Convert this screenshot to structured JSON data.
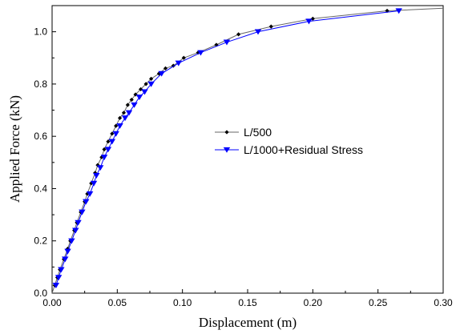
{
  "chart_data": {
    "type": "line",
    "xlabel": "Displacement (m)",
    "ylabel": "Applied Force (kN)",
    "xlim": [
      0.0,
      0.3
    ],
    "ylim": [
      0.0,
      1.1
    ],
    "xticks": [
      0.0,
      0.05,
      0.1,
      0.15,
      0.2,
      0.25,
      0.3
    ],
    "xtick_labels": [
      "0.00",
      "0.05",
      "0.10",
      "0.15",
      "0.20",
      "0.25",
      "0.30"
    ],
    "yticks": [
      0.0,
      0.2,
      0.4,
      0.6,
      0.8,
      1.0
    ],
    "ytick_labels": [
      "0.0",
      "0.2",
      "0.4",
      "0.6",
      "0.8",
      "1.0"
    ],
    "grid": false,
    "legend": {
      "placement": "center-right"
    },
    "series": [
      {
        "name": "L/500",
        "color": "#666666",
        "marker": "diamond",
        "marker_color": "#000000",
        "x": [
          0.0,
          0.002,
          0.004,
          0.006,
          0.009,
          0.012,
          0.014,
          0.017,
          0.019,
          0.022,
          0.025,
          0.027,
          0.03,
          0.033,
          0.035,
          0.038,
          0.04,
          0.043,
          0.046,
          0.049,
          0.052,
          0.055,
          0.058,
          0.061,
          0.064,
          0.068,
          0.072,
          0.076,
          0.082,
          0.087,
          0.093,
          0.101,
          0.112,
          0.126,
          0.143,
          0.168,
          0.2,
          0.257,
          0.3
        ],
        "y": [
          0.0,
          0.03,
          0.06,
          0.09,
          0.13,
          0.17,
          0.2,
          0.24,
          0.27,
          0.31,
          0.35,
          0.38,
          0.42,
          0.46,
          0.49,
          0.52,
          0.55,
          0.58,
          0.61,
          0.64,
          0.67,
          0.69,
          0.72,
          0.74,
          0.76,
          0.78,
          0.8,
          0.82,
          0.84,
          0.86,
          0.87,
          0.9,
          0.92,
          0.95,
          0.99,
          1.02,
          1.05,
          1.08,
          1.09
        ]
      },
      {
        "name": "L/1000+Residual Stress",
        "color": "#0000ff",
        "marker": "triangle-down",
        "marker_color": "#0000ff",
        "x": [
          0.003,
          0.005,
          0.007,
          0.01,
          0.012,
          0.015,
          0.018,
          0.02,
          0.023,
          0.026,
          0.029,
          0.032,
          0.034,
          0.037,
          0.04,
          0.043,
          0.046,
          0.049,
          0.052,
          0.056,
          0.059,
          0.063,
          0.067,
          0.071,
          0.076,
          0.084,
          0.097,
          0.114,
          0.134,
          0.158,
          0.197,
          0.266
        ],
        "y": [
          0.03,
          0.06,
          0.09,
          0.13,
          0.16,
          0.2,
          0.24,
          0.27,
          0.31,
          0.35,
          0.38,
          0.42,
          0.45,
          0.48,
          0.52,
          0.55,
          0.58,
          0.61,
          0.64,
          0.67,
          0.69,
          0.72,
          0.75,
          0.77,
          0.8,
          0.84,
          0.88,
          0.92,
          0.96,
          1.0,
          1.04,
          1.08
        ]
      }
    ]
  }
}
